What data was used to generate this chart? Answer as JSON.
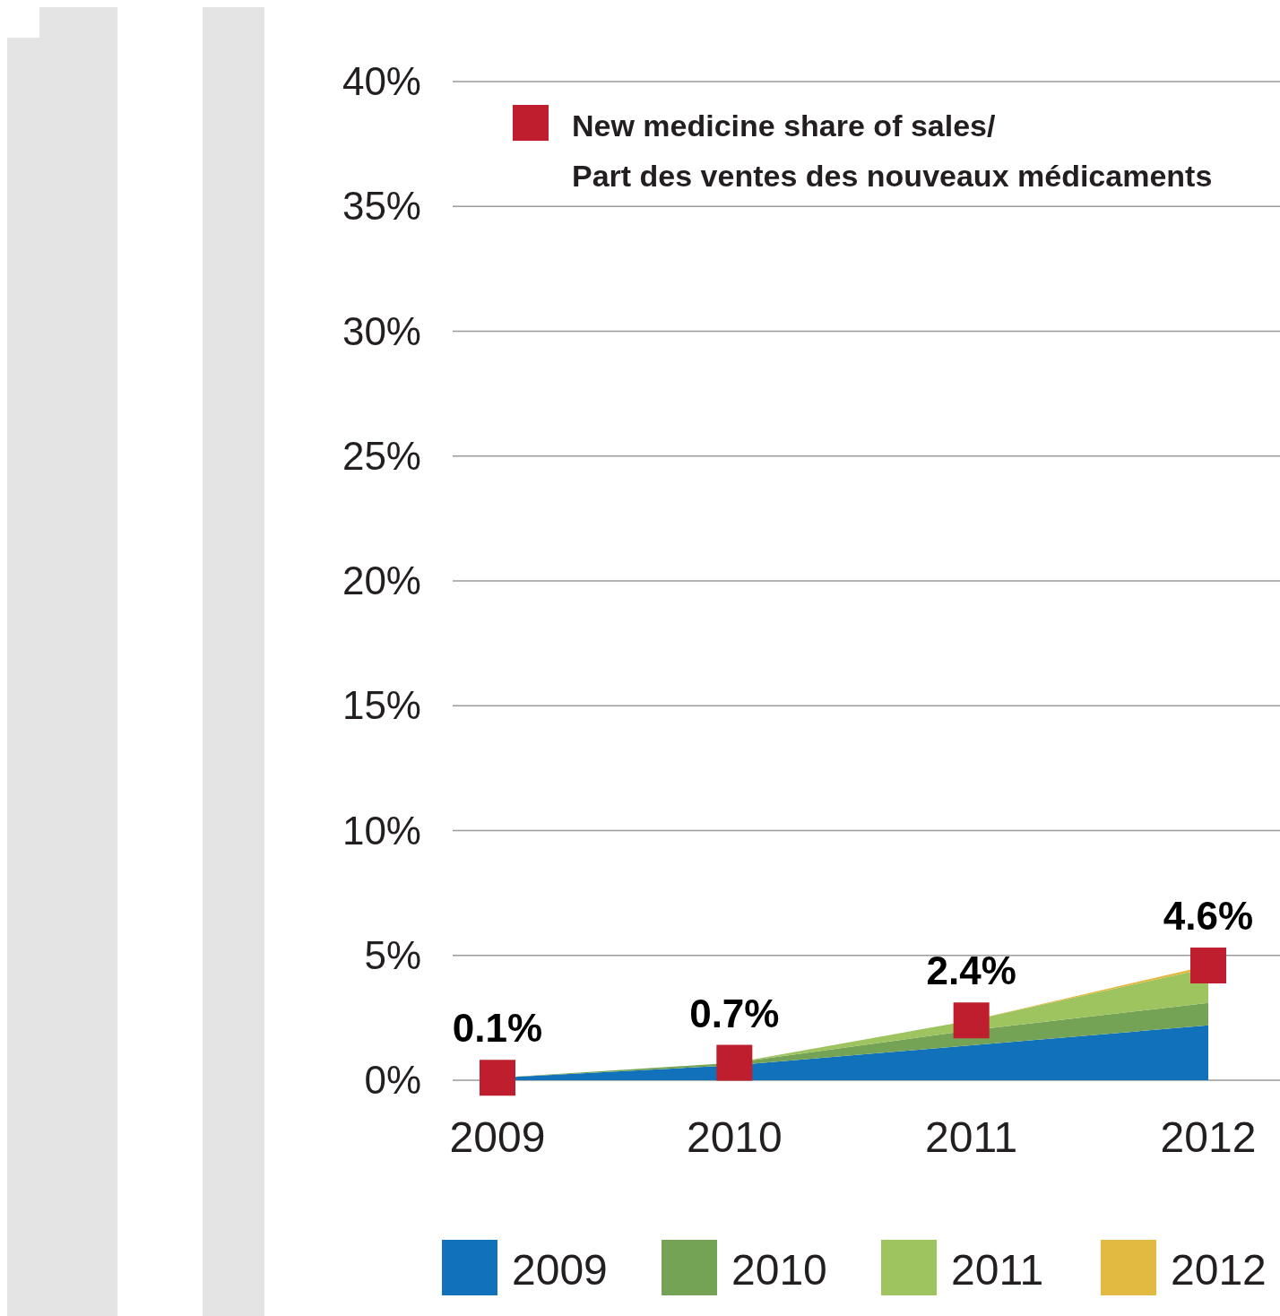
{
  "chart_data": {
    "type": "area",
    "stacked": true,
    "categories": [
      "2009",
      "2010",
      "2011",
      "2012"
    ],
    "series": [
      {
        "name": "2009",
        "color": "#1172bb",
        "values": [
          0.1,
          0.6,
          1.4,
          2.2
        ]
      },
      {
        "name": "2010",
        "color": "#74a355",
        "values": [
          0,
          0.1,
          0.6,
          0.9
        ]
      },
      {
        "name": "2011",
        "color": "#9dc45e",
        "values": [
          null,
          0,
          0.4,
          1.4
        ]
      },
      {
        "name": "2012",
        "color": "#e2b941",
        "values": [
          null,
          null,
          0,
          0.1
        ]
      },
      {
        "name": "New medicine share of sales/\nPart des ventes des nouveaux médicaments",
        "type": "scatter",
        "marker": "square",
        "color": "#be1e2d",
        "values": [
          0.1,
          0.7,
          2.4,
          4.6
        ],
        "value_labels": [
          "0.1%",
          "0.7%",
          "2.4%",
          "4.6%"
        ]
      }
    ],
    "ylim": [
      0,
      40
    ],
    "yticks": [
      {
        "value": 0,
        "label": "0%"
      },
      {
        "value": 5,
        "label": "5%"
      },
      {
        "value": 10,
        "label": "10%"
      },
      {
        "value": 15,
        "label": "15%"
      },
      {
        "value": 20,
        "label": "20%"
      },
      {
        "value": 25,
        "label": "25%"
      },
      {
        "value": 30,
        "label": "30%"
      },
      {
        "value": 35,
        "label": "35%"
      },
      {
        "value": 40,
        "label": "40%"
      }
    ],
    "grid": "y",
    "legend": "bottom"
  }
}
